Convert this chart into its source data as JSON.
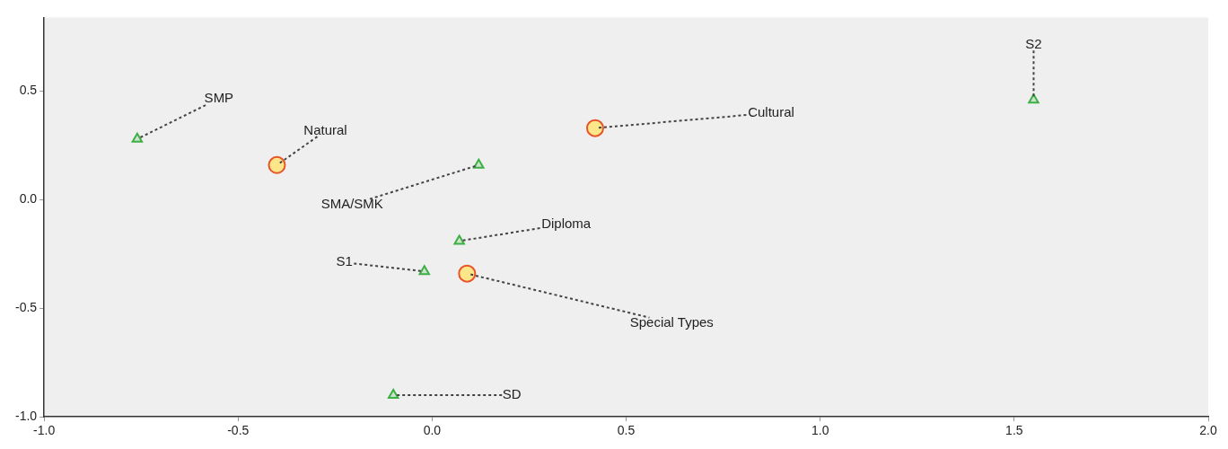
{
  "chart_data": {
    "type": "scatter",
    "xlim": [
      -1.0,
      2.0
    ],
    "ylim": [
      -1.0,
      0.84
    ],
    "xticks": [
      {
        "value": -1,
        "label": "-1.0"
      },
      {
        "value": -0.5,
        "label": "-0.5"
      },
      {
        "value": 0,
        "label": "0.0"
      },
      {
        "value": 0.5,
        "label": "0.5"
      },
      {
        "value": 1,
        "label": "1.0"
      },
      {
        "value": 1.5,
        "label": "1.5"
      },
      {
        "value": 2,
        "label": "2.0"
      }
    ],
    "yticks": [
      {
        "value": -1,
        "label": "-1.0"
      },
      {
        "value": -0.5,
        "label": "-0.5"
      },
      {
        "value": 0,
        "label": "0.0"
      },
      {
        "value": 0.5,
        "label": "0.5"
      }
    ],
    "grid": false,
    "legend": false,
    "series": [
      {
        "color": "#e8542a",
        "marker": "circle",
        "x": [
          -0.4,
          0.42,
          0.09
        ],
        "values": [
          0.16,
          0.33,
          -0.34
        ]
      },
      {
        "color": "#3cb043",
        "marker": "triangle",
        "x": [
          -0.76,
          1.55,
          0.12,
          0.07,
          -0.02,
          -0.1
        ],
        "values": [
          0.28,
          0.46,
          0.16,
          -0.19,
          -0.33,
          -0.9
        ]
      }
    ],
    "annotations": [
      {
        "text": "Natural",
        "x": -0.4,
        "y": 0.16
      },
      {
        "text": "Cultural",
        "x": 0.42,
        "y": 0.33
      },
      {
        "text": "Special Types",
        "x": 0.09,
        "y": -0.34
      },
      {
        "text": "SMP",
        "x": -0.76,
        "y": 0.28
      },
      {
        "text": "S2",
        "x": 1.55,
        "y": 0.46
      },
      {
        "text": "SMA/SMK",
        "x": 0.12,
        "y": 0.16
      },
      {
        "text": "Diploma",
        "x": 0.07,
        "y": -0.19
      },
      {
        "text": "S1",
        "x": -0.02,
        "y": -0.33
      },
      {
        "text": "SD",
        "x": -0.1,
        "y": -0.9
      }
    ]
  }
}
